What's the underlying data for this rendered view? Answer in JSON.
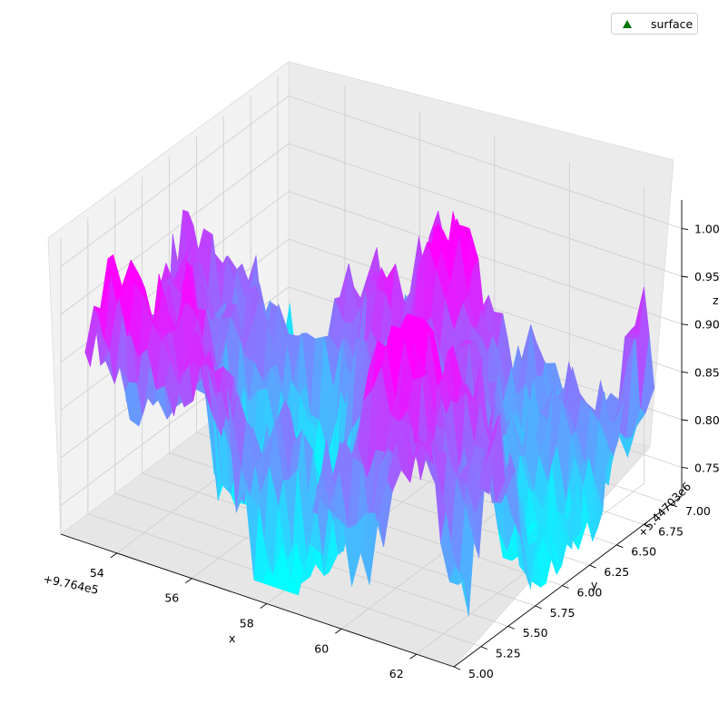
{
  "chart_data": {
    "type": "surface",
    "xlabel": "x",
    "ylabel": "y",
    "zlabel": "z",
    "x_offset_label": "+9.764e5",
    "y_offset_label": "+5.44703e6",
    "x_ticks": [
      "54",
      "56",
      "58",
      "60",
      "62"
    ],
    "y_ticks": [
      "5.00",
      "5.25",
      "5.50",
      "5.75",
      "6.00",
      "6.25",
      "6.50",
      "6.75",
      "7.00"
    ],
    "z_ticks": [
      "0.75",
      "0.80",
      "0.85",
      "0.90",
      "0.95",
      "1.00"
    ],
    "xlim": [
      976452.5,
      976463.0
    ],
    "ylim": [
      5447035.0,
      5447037.1
    ],
    "zlim": [
      0.72,
      1.03
    ],
    "legend": [
      {
        "label": "surface",
        "marker": "triangle",
        "color": "#007500"
      }
    ],
    "colormap": [
      "#00ffff",
      "#ff00ff"
    ],
    "grid": true,
    "legend_position": "top-right"
  }
}
